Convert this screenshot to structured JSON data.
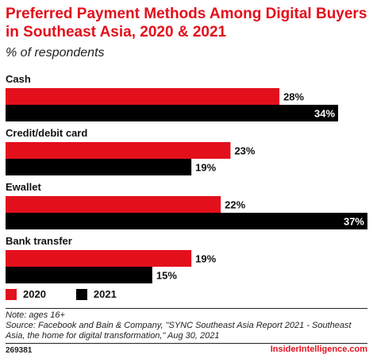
{
  "header": {
    "title": "Preferred Payment Methods Among Digital Buyers in Southeast Asia, 2020 & 2021",
    "subtitle": "% of respondents"
  },
  "colors": {
    "accent": "#e3101c",
    "series_2020": "#e3101c",
    "series_2021": "#000000"
  },
  "chart_data": {
    "type": "bar",
    "orientation": "horizontal",
    "title": "Preferred Payment Methods Among Digital Buyers in Southeast Asia, 2020 & 2021",
    "subtitle": "% of respondents",
    "categories": [
      "Cash",
      "Credit/debit card",
      "Ewallet",
      "Bank transfer"
    ],
    "series": [
      {
        "name": "2020",
        "color": "#e3101c",
        "values": [
          28,
          23,
          22,
          19
        ]
      },
      {
        "name": "2021",
        "color": "#000000",
        "values": [
          34,
          19,
          37,
          15
        ]
      }
    ],
    "value_suffix": "%",
    "xlim": [
      0,
      37
    ],
    "grid": false,
    "legend_position": "bottom-left"
  },
  "legend": {
    "items": [
      {
        "label": "2020",
        "color": "#e3101c"
      },
      {
        "label": "2021",
        "color": "#000000"
      }
    ]
  },
  "notes": {
    "note": "Note: ages 16+",
    "source_line1": "Source: Facebook and Bain & Company, \"SYNC Southeast Asia Report 2021 - Southeast",
    "source_line2": "Asia, the home for digital transformation,\" Aug 30, 2021"
  },
  "footer": {
    "id": "269381",
    "brand": "InsiderIntelligence.com"
  }
}
